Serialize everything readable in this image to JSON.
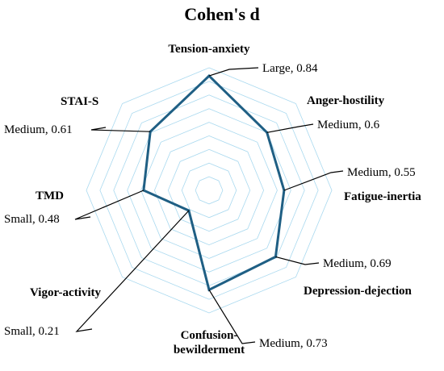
{
  "chart_data": {
    "type": "radar",
    "title": "Cohen's d",
    "axes": [
      {
        "label": "Tension-anxiety",
        "value": 0.84,
        "data_label": "Large, 0.84"
      },
      {
        "label": "Anger-hostility",
        "value": 0.6,
        "data_label": "Medium, 0.6"
      },
      {
        "label": "Fatigue-inertia",
        "value": 0.55,
        "data_label": "Medium, 0.55"
      },
      {
        "label": "Depression-dejection",
        "value": 0.69,
        "data_label": "Medium, 0.69"
      },
      {
        "label": "Confusion-\nbewilderment",
        "value": 0.73,
        "data_label": "Medium, 0.73"
      },
      {
        "label": "Vigor-activity",
        "value": 0.21,
        "data_label": "Small, 0.21"
      },
      {
        "label": "TMD",
        "value": 0.48,
        "data_label": "Small, 0.48"
      },
      {
        "label": "STAI-S",
        "value": 0.61,
        "data_label": "Medium, 0.61"
      }
    ],
    "range": [
      0,
      0.9
    ],
    "grid_rings": 9,
    "grid": true,
    "legend": "none",
    "colors": {
      "series": "#1f5f84",
      "grid": "#a9d9ef"
    }
  }
}
